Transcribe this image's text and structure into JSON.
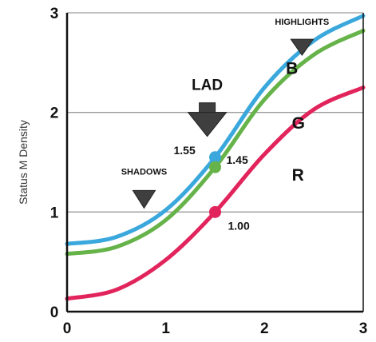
{
  "chart_data": {
    "type": "line",
    "title": "",
    "xlabel": "",
    "ylabel": "Status M Density",
    "xlim": [
      0,
      3
    ],
    "ylim": [
      0,
      3
    ],
    "x_ticks": [
      "0",
      "1",
      "2",
      "3"
    ],
    "y_ticks": [
      "0",
      "1",
      "2",
      "3"
    ],
    "grid": "horizontal",
    "series": [
      {
        "name": "B",
        "color": "#3aa8dc",
        "points": [
          [
            0,
            0.68
          ],
          [
            0.5,
            0.75
          ],
          [
            1.0,
            1.02
          ],
          [
            1.5,
            1.55
          ],
          [
            2.0,
            2.25
          ],
          [
            2.5,
            2.72
          ],
          [
            3.0,
            2.97
          ]
        ]
      },
      {
        "name": "G",
        "color": "#66b34a",
        "points": [
          [
            0,
            0.58
          ],
          [
            0.5,
            0.65
          ],
          [
            1.0,
            0.92
          ],
          [
            1.5,
            1.45
          ],
          [
            2.0,
            2.13
          ],
          [
            2.5,
            2.58
          ],
          [
            3.0,
            2.82
          ]
        ]
      },
      {
        "name": "R",
        "color": "#e2245c",
        "points": [
          [
            0,
            0.13
          ],
          [
            0.5,
            0.22
          ],
          [
            1.0,
            0.52
          ],
          [
            1.5,
            1.0
          ],
          [
            2.0,
            1.58
          ],
          [
            2.5,
            2.03
          ],
          [
            3.0,
            2.25
          ]
        ]
      }
    ],
    "markers": [
      {
        "series": "B",
        "x": 1.5,
        "y": 1.55,
        "label": "1.55"
      },
      {
        "series": "G",
        "x": 1.5,
        "y": 1.45,
        "label": "1.45"
      },
      {
        "series": "R",
        "x": 1.5,
        "y": 1.0,
        "label": "1.00"
      }
    ],
    "annotations": [
      {
        "label": "SHADOWS",
        "x": 0.78,
        "y": 1.2
      },
      {
        "label": "LAD",
        "x": 1.42,
        "y": 2.0
      },
      {
        "label": "HIGHLIGHTS",
        "x": 2.38,
        "y": 2.75
      }
    ]
  }
}
